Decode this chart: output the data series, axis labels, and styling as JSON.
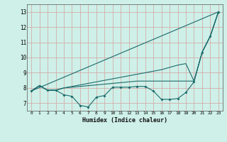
{
  "xlabel": "Humidex (Indice chaleur)",
  "bg_color": "#cef0e8",
  "grid_color_major": "#d4a0a0",
  "grid_color_minor": "#b8d8d4",
  "line_color": "#1a6b6b",
  "xlim": [
    -0.5,
    23.5
  ],
  "ylim": [
    6.5,
    13.5
  ],
  "xticks": [
    0,
    1,
    2,
    3,
    4,
    5,
    6,
    7,
    8,
    9,
    10,
    11,
    12,
    13,
    14,
    15,
    16,
    17,
    18,
    19,
    20,
    21,
    22,
    23
  ],
  "yticks": [
    7,
    8,
    9,
    10,
    11,
    12,
    13
  ],
  "line1_x": [
    0,
    1,
    2,
    3,
    4,
    5,
    6,
    7,
    8,
    9,
    10,
    11,
    12,
    13,
    14,
    15,
    16,
    17,
    18,
    19,
    20,
    21,
    22,
    23
  ],
  "line1_y": [
    7.8,
    8.15,
    7.85,
    7.85,
    7.55,
    7.45,
    6.85,
    6.75,
    7.4,
    7.5,
    8.05,
    8.05,
    8.05,
    8.1,
    8.1,
    7.8,
    7.25,
    7.25,
    7.3,
    7.7,
    8.4,
    10.35,
    11.4,
    13.0
  ],
  "line2_x": [
    0,
    1,
    2,
    3,
    4,
    5,
    6,
    7,
    8,
    9,
    10,
    11,
    12,
    13,
    14,
    15,
    16,
    17,
    18,
    19,
    20,
    21,
    22,
    23
  ],
  "line2_y": [
    7.8,
    8.15,
    7.85,
    7.85,
    8.0,
    8.1,
    8.2,
    8.3,
    8.4,
    8.5,
    8.6,
    8.7,
    8.8,
    8.9,
    9.0,
    9.1,
    9.2,
    9.35,
    9.5,
    9.6,
    8.45,
    10.35,
    11.4,
    13.0
  ],
  "line3_x": [
    0,
    23
  ],
  "line3_y": [
    7.8,
    13.0
  ],
  "line4_x": [
    0,
    1,
    2,
    3,
    4,
    5,
    6,
    7,
    8,
    9,
    10,
    11,
    12,
    13,
    14,
    15,
    16,
    17,
    18,
    19,
    20,
    21,
    22,
    23
  ],
  "line4_y": [
    7.8,
    8.15,
    7.85,
    7.85,
    8.0,
    8.05,
    8.1,
    8.15,
    8.2,
    8.25,
    8.3,
    8.35,
    8.4,
    8.45,
    8.45,
    8.45,
    8.45,
    8.45,
    8.45,
    8.45,
    8.45,
    10.35,
    11.4,
    13.0
  ]
}
